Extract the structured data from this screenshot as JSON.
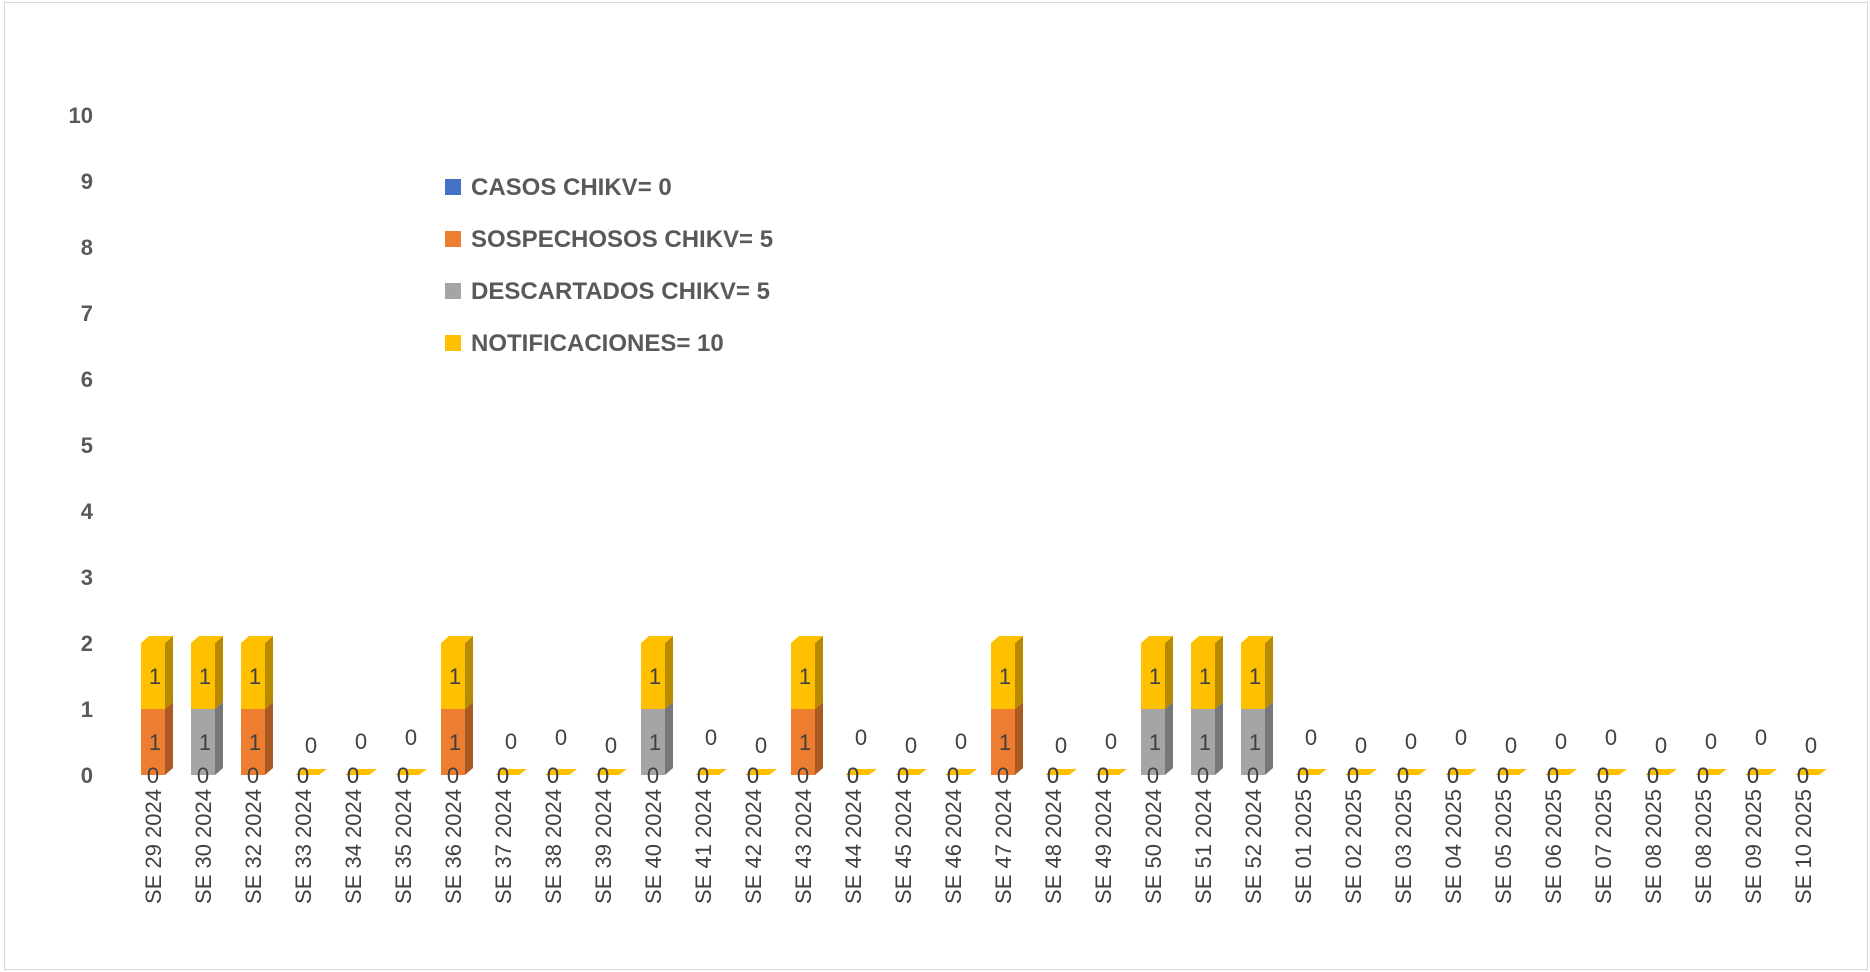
{
  "chart_data": {
    "type": "bar",
    "stacked": true,
    "title": "",
    "xlabel": "",
    "ylabel": "",
    "ylim": [
      0,
      10
    ],
    "yticks": [
      "0",
      "1",
      "2",
      "3",
      "4",
      "5",
      "6",
      "7",
      "8",
      "9",
      "10"
    ],
    "grid": false,
    "legend_position": "top-left",
    "categories": [
      "SE 29 2024",
      "SE 30 2024",
      "SE 32 2024",
      "SE 33 2024",
      "SE 34 2024",
      "SE 35 2024",
      "SE 36 2024",
      "SE 37 2024",
      "SE 38 2024",
      "SE 39 2024",
      "SE 40 2024",
      "SE 41 2024",
      "SE 42 2024",
      "SE 43 2024",
      "SE 44 2024",
      "SE 45 2024",
      "SE 46 2024",
      "SE 47 2024",
      "SE 48 2024",
      "SE 49 2024",
      "SE 50 2024",
      "SE 51 2024",
      "SE 52 2024",
      "SE 01 2025",
      "SE 02 2025",
      "SE 03 2025",
      "SE 04 2025",
      "SE 05 2025",
      "SE 06 2025",
      "SE 07 2025",
      "SE 08 2025",
      "SE 08 2025",
      "SE 09 2025",
      "SE 10 2025"
    ],
    "series": [
      {
        "name": "CASOS CHIKV= 0",
        "color": "#4472C4",
        "values": [
          0,
          0,
          0,
          0,
          0,
          0,
          0,
          0,
          0,
          0,
          0,
          0,
          0,
          0,
          0,
          0,
          0,
          0,
          0,
          0,
          0,
          0,
          0,
          0,
          0,
          0,
          0,
          0,
          0,
          0,
          0,
          0,
          0,
          0
        ]
      },
      {
        "name": "SOSPECHOSOS CHIKV= 5",
        "color": "#ED7D31",
        "values": [
          1,
          0,
          1,
          0,
          0,
          0,
          1,
          0,
          0,
          0,
          0,
          0,
          0,
          1,
          0,
          0,
          0,
          1,
          0,
          0,
          0,
          0,
          0,
          0,
          0,
          0,
          0,
          0,
          0,
          0,
          0,
          0,
          0,
          0
        ]
      },
      {
        "name": "DESCARTADOS CHIKV= 5",
        "color": "#A5A5A5",
        "values": [
          0,
          1,
          0,
          0,
          0,
          0,
          0,
          0,
          0,
          0,
          1,
          0,
          0,
          0,
          0,
          0,
          0,
          0,
          0,
          0,
          1,
          1,
          1,
          0,
          0,
          0,
          0,
          0,
          0,
          0,
          0,
          0,
          0,
          0
        ]
      },
      {
        "name": "NOTIFICACIONES= 10",
        "color": "#FFC000",
        "values": [
          1,
          1,
          1,
          0,
          0,
          0,
          1,
          0,
          0,
          0,
          1,
          0,
          0,
          1,
          0,
          0,
          0,
          1,
          0,
          0,
          1,
          1,
          1,
          0,
          0,
          0,
          0,
          0,
          0,
          0,
          0,
          0,
          0,
          0
        ]
      }
    ]
  }
}
